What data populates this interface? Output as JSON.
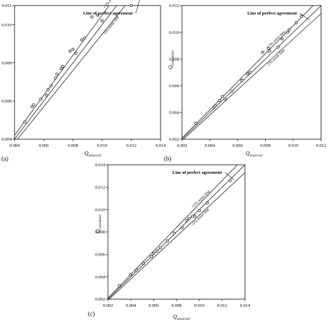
{
  "chart_data": [
    {
      "type": "scatter",
      "panel_label": "(a)",
      "xlabel_main": "Q",
      "xlabel_sub": "observed",
      "ylabel_main": "",
      "ylabel_sub": "",
      "xlim": [
        0.004,
        0.014
      ],
      "ylim": [
        0.004,
        0.011
      ],
      "xticks": [
        "0.004",
        "0.006",
        "0.008",
        "0.010",
        "0.012",
        "0.014"
      ],
      "yticks": [
        "0.004",
        "0.006",
        "0.008",
        "0.010",
        "0.011"
      ],
      "ytick_values": [
        0.004,
        0.006,
        0.008,
        0.01,
        0.011
      ],
      "xtick_values": [
        0.004,
        0.006,
        0.008,
        0.01,
        0.012,
        0.014
      ],
      "annotations": [
        "Line of perfect agreement",
        "+5% error line",
        "-5% error line"
      ],
      "lines": {
        "perfect": 1.0,
        "plus5": 1.05,
        "minus5": 0.95
      },
      "points": [
        [
          0.0047,
          0.0049
        ],
        [
          0.0052,
          0.0057
        ],
        [
          0.0053,
          0.0058
        ],
        [
          0.0058,
          0.0061
        ],
        [
          0.0062,
          0.0063
        ],
        [
          0.0063,
          0.0066
        ],
        [
          0.0065,
          0.0068
        ],
        [
          0.0068,
          0.0072
        ],
        [
          0.0069,
          0.0074
        ],
        [
          0.0072,
          0.0077
        ],
        [
          0.0073,
          0.0078
        ],
        [
          0.0078,
          0.0086
        ],
        [
          0.008,
          0.0087
        ],
        [
          0.0082,
          0.0085
        ],
        [
          0.0086,
          0.0092
        ],
        [
          0.0088,
          0.0093
        ],
        [
          0.0093,
          0.0104
        ],
        [
          0.0097,
          0.0105
        ],
        [
          0.01,
          0.0102
        ],
        [
          0.012,
          0.011
        ]
      ]
    },
    {
      "type": "scatter",
      "panel_label": "(b)",
      "xlabel_main": "Q",
      "xlabel_sub": "observed",
      "ylabel_main": "Q",
      "ylabel_sub": "calculated",
      "xlim": [
        0.002,
        0.012
      ],
      "ylim": [
        0.002,
        0.012
      ],
      "xticks": [
        "0.002",
        "0.004",
        "0.006",
        "0.008",
        "0.010",
        "0.012"
      ],
      "yticks": [
        "0.002",
        "0.004",
        "0.006",
        "0.008",
        "0.010",
        "0.012"
      ],
      "ytick_values": [
        0.002,
        0.004,
        0.006,
        0.008,
        0.01,
        0.012
      ],
      "xtick_values": [
        0.002,
        0.004,
        0.006,
        0.008,
        0.01,
        0.012
      ],
      "annotations": [
        "Line of perfect agreement",
        "+5% error line",
        "-5% error line"
      ],
      "lines": {
        "perfect": 1.0,
        "plus5": 1.05,
        "minus5": 0.95
      },
      "points": [
        [
          0.003,
          0.0032
        ],
        [
          0.0043,
          0.0044
        ],
        [
          0.0044,
          0.0045
        ],
        [
          0.0047,
          0.0049
        ],
        [
          0.0049,
          0.0052
        ],
        [
          0.0051,
          0.005
        ],
        [
          0.0056,
          0.0056
        ],
        [
          0.0063,
          0.0064
        ],
        [
          0.0067,
          0.0069
        ],
        [
          0.0069,
          0.007
        ],
        [
          0.0078,
          0.0085
        ],
        [
          0.0082,
          0.0088
        ],
        [
          0.0083,
          0.0086
        ],
        [
          0.0089,
          0.0089
        ],
        [
          0.0092,
          0.0095
        ],
        [
          0.0096,
          0.01
        ],
        [
          0.0097,
          0.0102
        ],
        [
          0.0102,
          0.0107
        ],
        [
          0.0106,
          0.0112
        ]
      ]
    },
    {
      "type": "scatter",
      "panel_label": "(c)",
      "xlabel_main": "Q",
      "xlabel_sub": "observed",
      "ylabel_main": "Q",
      "ylabel_sub": "calculated",
      "xlim": [
        0.002,
        0.014
      ],
      "ylim": [
        0.002,
        0.014
      ],
      "xticks": [
        "0.002",
        "0.004",
        "0.006",
        "0.008",
        "0.010",
        "0.012",
        "0.014"
      ],
      "yticks": [
        "0.002",
        "0.004",
        "0.006",
        "0.008",
        "0.010",
        "0.012",
        "0.014"
      ],
      "ytick_values": [
        0.002,
        0.004,
        0.006,
        0.008,
        0.01,
        0.012,
        0.014
      ],
      "xtick_values": [
        0.002,
        0.004,
        0.006,
        0.008,
        0.01,
        0.012,
        0.014
      ],
      "annotations": [
        "Line of perfect agreement",
        "+5% error line",
        "-5% error line"
      ],
      "lines": {
        "perfect": 1.0,
        "plus5": 1.05,
        "minus5": 0.95
      },
      "points": [
        [
          0.003,
          0.0032
        ],
        [
          0.004,
          0.0042
        ],
        [
          0.0045,
          0.0046
        ],
        [
          0.0051,
          0.0052
        ],
        [
          0.0058,
          0.0058
        ],
        [
          0.006,
          0.0061
        ],
        [
          0.0063,
          0.0063
        ],
        [
          0.0066,
          0.0066
        ],
        [
          0.0072,
          0.0072
        ],
        [
          0.0078,
          0.0079
        ],
        [
          0.0085,
          0.0084
        ],
        [
          0.0089,
          0.009
        ],
        [
          0.0091,
          0.0092
        ],
        [
          0.0094,
          0.0094
        ],
        [
          0.0096,
          0.0094
        ],
        [
          0.01,
          0.0099
        ],
        [
          0.0107,
          0.0106
        ],
        [
          0.0127,
          0.0126
        ]
      ]
    }
  ]
}
